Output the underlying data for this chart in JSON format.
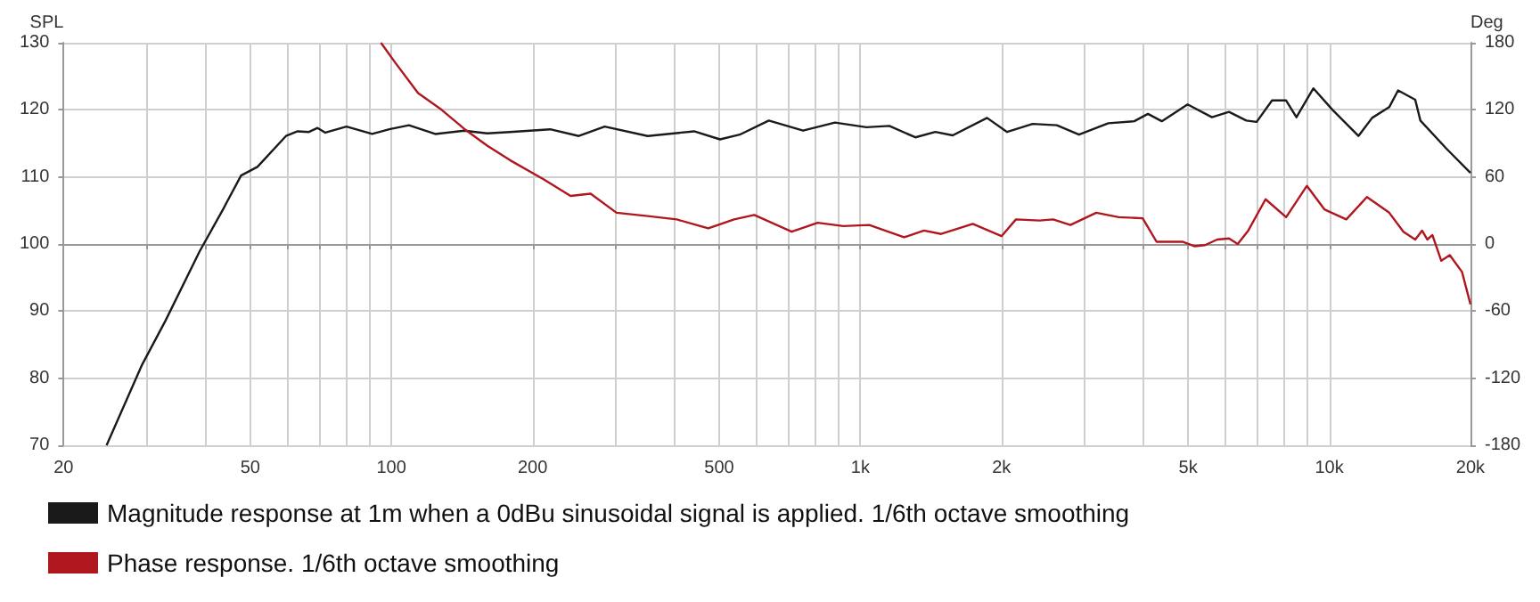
{
  "chart_data": {
    "type": "line",
    "ylabel": "SPL",
    "y2label": "Deg",
    "log": "x",
    "grid": true,
    "legend": "bottom",
    "marker": "none",
    "line_style": "solid",
    "xlim": [
      20,
      20000
    ],
    "xticks": [
      20,
      {
        "value": 30,
        "label": null
      },
      {
        "value": 40,
        "label": null
      },
      50,
      {
        "value": 60,
        "label": null
      },
      {
        "value": 70,
        "label": null
      },
      {
        "value": 80,
        "label": null
      },
      {
        "value": 90,
        "label": null
      },
      100,
      200,
      {
        "value": 300,
        "label": null
      },
      {
        "value": 400,
        "label": null
      },
      500,
      {
        "value": 600,
        "label": null
      },
      {
        "value": 700,
        "label": null
      },
      {
        "value": 800,
        "label": null
      },
      {
        "value": 900,
        "label": null
      },
      {
        "value": 1000,
        "label": "1k"
      },
      {
        "value": 2000,
        "label": "2k"
      },
      {
        "value": 3000,
        "label": null
      },
      {
        "value": 4000,
        "label": null
      },
      {
        "value": 5000,
        "label": "5k"
      },
      {
        "value": 6000,
        "label": null
      },
      {
        "value": 7000,
        "label": null
      },
      {
        "value": 8000,
        "label": null
      },
      {
        "value": 9000,
        "label": null
      },
      {
        "value": 10000,
        "label": "10k"
      },
      {
        "value": 20000,
        "label": "20k"
      }
    ],
    "ylim": [
      70,
      130
    ],
    "yticks": [
      70,
      80,
      90,
      100,
      110,
      120,
      130
    ],
    "y2lim": [
      -180,
      180
    ],
    "y2ticks": [
      -180,
      -120,
      -60,
      0,
      60,
      120,
      180
    ],
    "series": [
      {
        "name": "Magnitude response at 1m when a 0dBu sinusoidal signal is applied. 1/6th octave smoothing",
        "color": "#1a1a1a",
        "x": [
          24.7,
          29.4,
          33,
          39,
          43.7,
          47.8,
          51.8,
          59.6,
          63.1,
          66.7,
          69.6,
          72.3,
          80.2,
          91,
          99,
          109,
          124,
          143,
          160,
          179,
          218,
          251,
          285,
          352,
          442,
          502,
          553,
          638,
          755,
          883,
          1030,
          1153,
          1310,
          1445,
          1574,
          1863,
          2056,
          2330,
          2624,
          2926,
          3380,
          3837,
          4105,
          4393,
          4987,
          5620,
          6112,
          6653,
          7000,
          7550,
          8090,
          8510,
          9250,
          10160,
          11540,
          12340,
          13420,
          14020,
          15250,
          15640,
          17780,
          20000
        ],
        "values": [
          70,
          82,
          88.6,
          98.9,
          105.1,
          110.2,
          111.5,
          116.1,
          116.8,
          116.7,
          117.3,
          116.6,
          117.5,
          116.4,
          117.1,
          117.7,
          116.4,
          116.9,
          116.5,
          116.7,
          117.1,
          116.1,
          117.5,
          116.1,
          116.8,
          115.6,
          116.3,
          118.4,
          116.9,
          118.1,
          117.4,
          117.6,
          115.9,
          116.7,
          116.2,
          118.8,
          116.7,
          117.9,
          117.7,
          116.3,
          118,
          118.3,
          119.4,
          118.3,
          120.8,
          118.9,
          119.7,
          118.4,
          118.2,
          121.4,
          121.4,
          118.9,
          123.2,
          120,
          116.1,
          118.8,
          120.4,
          122.9,
          121.5,
          118.4,
          114.2,
          110.6
        ]
      },
      {
        "name": "Phase response. 1/6th octave smoothing",
        "color": "#b0161e",
        "axis": "y2",
        "x": [
          95,
          102,
          114,
          128,
          143,
          160,
          179,
          211,
          241,
          266,
          302,
          352,
          406,
          474,
          538,
          594,
          714,
          811,
          920,
          1045,
          1239,
          1367,
          1487,
          1737,
          2000,
          2147,
          2410,
          2577,
          2805,
          3185,
          3557,
          4000,
          4283,
          4864,
          5165,
          5433,
          5766,
          6112,
          6378,
          6717,
          7313,
          8090,
          8960,
          9760,
          10870,
          12030,
          13420,
          14390,
          15250,
          15770,
          16180,
          16590,
          17330,
          18070,
          19190,
          20000
        ],
        "values": [
          180,
          162,
          135,
          120,
          103,
          88,
          75,
          58,
          43,
          45,
          28,
          25,
          22,
          14,
          22,
          26,
          11,
          19,
          16,
          17,
          6,
          12,
          9,
          18,
          7,
          22,
          21,
          22,
          17,
          28,
          24,
          23,
          2,
          2,
          -2,
          -1,
          4,
          5,
          0,
          12,
          40,
          24,
          52,
          31,
          22,
          42,
          28,
          11,
          4,
          12,
          4,
          8,
          -15,
          -10,
          -25,
          -54
        ]
      }
    ]
  }
}
